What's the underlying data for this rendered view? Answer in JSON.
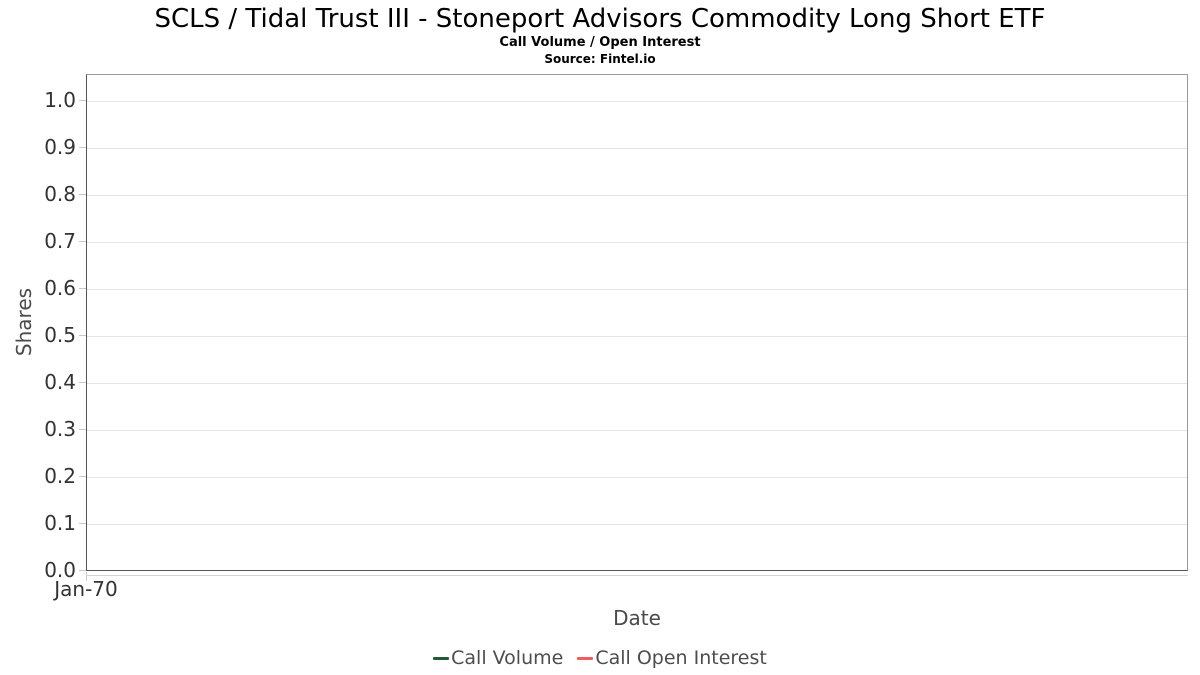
{
  "chart_data": {
    "type": "line",
    "title": "SCLS / Tidal Trust III - Stoneport Advisors Commodity Long Short ETF",
    "subtitle": "Call Volume / Open Interest",
    "source": "Source: Fintel.io",
    "xlabel": "Date",
    "ylabel": "Shares",
    "ylim": [
      0.0,
      1.0
    ],
    "grid": true,
    "legend_position": "bottom",
    "yticks": [
      "1.0",
      "0.9",
      "0.8",
      "0.7",
      "0.6",
      "0.5",
      "0.4",
      "0.3",
      "0.2",
      "0.1",
      "0.0"
    ],
    "xticks": [
      "Jan-70"
    ],
    "series": [
      {
        "name": "Call Volume",
        "color": "#205b36",
        "x": [],
        "values": []
      },
      {
        "name": "Call Open Interest",
        "color": "#f45b5b",
        "x": [],
        "values": []
      }
    ]
  }
}
